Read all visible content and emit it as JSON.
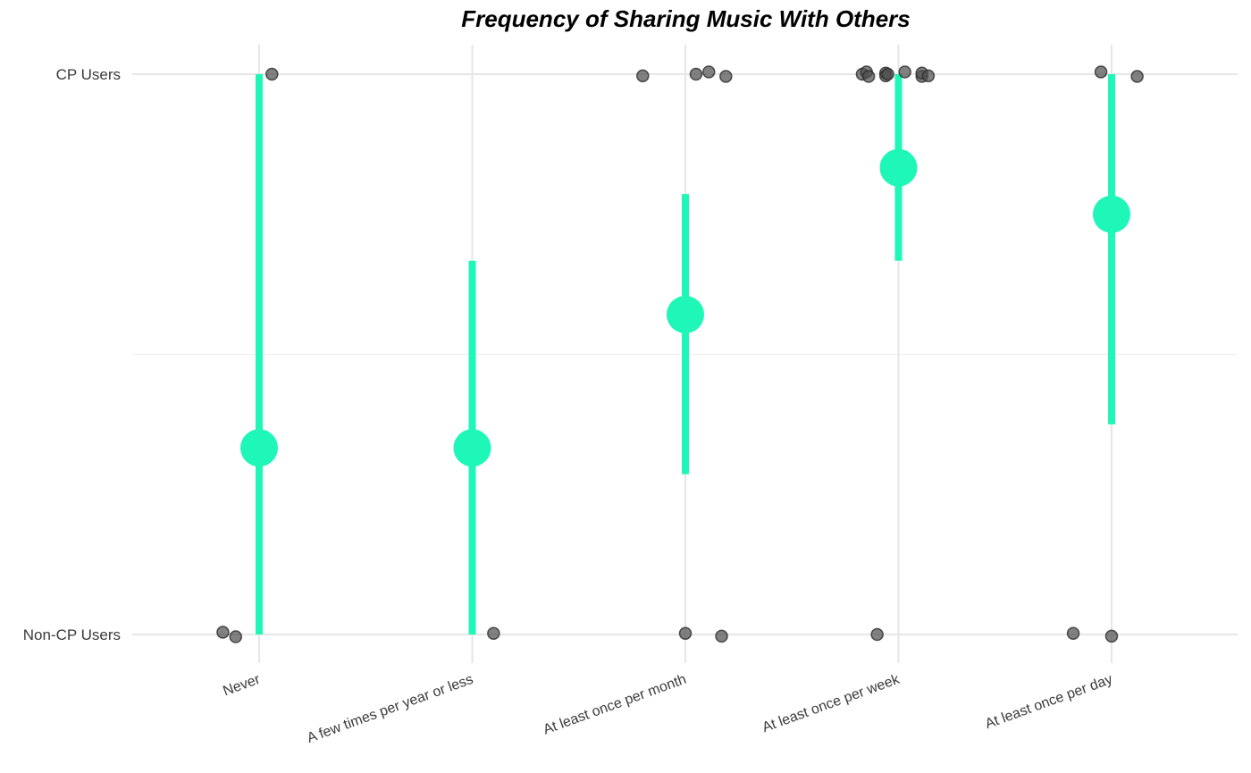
{
  "chart_data": {
    "type": "pointrange",
    "title": "Frequency of Sharing Music With Others",
    "xlabel": "",
    "ylabel": "",
    "categories": [
      "Never",
      "A few times per year or less",
      "At least once per month",
      "At least once per week",
      "At least once per day"
    ],
    "y_categories": [
      "Non-CP Users",
      "CP Users"
    ],
    "ylim": [
      -0.1,
      1.05
    ],
    "grid": true,
    "colors": {
      "summary": "#1ef7b8",
      "points": "#505050",
      "grid": "#e6e6e6"
    },
    "summary": [
      {
        "category": "Never",
        "mean": 0.333,
        "low": 0.0,
        "high": 1.0
      },
      {
        "category": "A few times per year or less",
        "mean": 0.333,
        "low": 0.0,
        "high": 0.667
      },
      {
        "category": "At least once per month",
        "mean": 0.571,
        "low": 0.286,
        "high": 0.786
      },
      {
        "category": "At least once per week",
        "mean": 0.833,
        "low": 0.667,
        "high": 1.0
      },
      {
        "category": "At least once per day",
        "mean": 0.75,
        "low": 0.375,
        "high": 1.0
      }
    ],
    "points": [
      {
        "category": "Never",
        "offset": 0.06,
        "y": 1.0
      },
      {
        "category": "Never",
        "offset": -0.17,
        "y": 0.0
      },
      {
        "category": "Never",
        "offset": -0.11,
        "y": 0.0
      },
      {
        "category": "A few times per year or less",
        "offset": 0.1,
        "y": 0.0
      },
      {
        "category": "At least once per month",
        "offset": -0.2,
        "y": 1.0
      },
      {
        "category": "At least once per month",
        "offset": 0.05,
        "y": 1.0
      },
      {
        "category": "At least once per month",
        "offset": 0.11,
        "y": 1.0
      },
      {
        "category": "At least once per month",
        "offset": 0.19,
        "y": 1.0
      },
      {
        "category": "At least once per month",
        "offset": 0.0,
        "y": 0.0
      },
      {
        "category": "At least once per month",
        "offset": 0.17,
        "y": 0.0
      },
      {
        "category": "At least once per week",
        "offset": -0.17,
        "y": 1.0
      },
      {
        "category": "At least once per week",
        "offset": -0.15,
        "y": 1.0
      },
      {
        "category": "At least once per week",
        "offset": -0.14,
        "y": 1.0
      },
      {
        "category": "At least once per week",
        "offset": -0.06,
        "y": 1.0
      },
      {
        "category": "At least once per week",
        "offset": -0.06,
        "y": 1.0
      },
      {
        "category": "At least once per week",
        "offset": -0.05,
        "y": 1.0
      },
      {
        "category": "At least once per week",
        "offset": 0.03,
        "y": 1.0
      },
      {
        "category": "At least once per week",
        "offset": 0.11,
        "y": 1.0
      },
      {
        "category": "At least once per week",
        "offset": 0.11,
        "y": 1.0
      },
      {
        "category": "At least once per week",
        "offset": 0.14,
        "y": 1.0
      },
      {
        "category": "At least once per week",
        "offset": -0.1,
        "y": 0.0
      },
      {
        "category": "At least once per day",
        "offset": -0.05,
        "y": 1.0
      },
      {
        "category": "At least once per day",
        "offset": 0.12,
        "y": 1.0
      },
      {
        "category": "At least once per day",
        "offset": -0.18,
        "y": 0.0
      },
      {
        "category": "At least once per day",
        "offset": 0.0,
        "y": 0.0
      }
    ]
  }
}
